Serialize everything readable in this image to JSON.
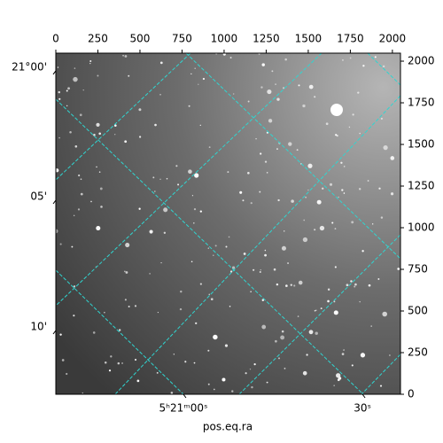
{
  "chart_data": {
    "type": "image",
    "xlabel": "pos.eq.ra",
    "xlim": [
      0,
      2048
    ],
    "ylim": [
      0,
      2048
    ],
    "xticks": [
      0,
      250,
      500,
      750,
      1000,
      1250,
      1500,
      1750,
      2000
    ],
    "yticks": [
      0,
      250,
      500,
      750,
      1000,
      1250,
      1500,
      1750,
      2000
    ],
    "ra_ticks": [
      {
        "value": 758,
        "label": "5ʰ21ᵐ00ˢ"
      },
      {
        "value": 1822,
        "label": "30ˢ"
      }
    ],
    "dec_ticks": [
      {
        "value": 1942,
        "label": "21°00'"
      },
      {
        "value": 1165,
        "label": "05'"
      },
      {
        "value": 383,
        "label": "10'"
      }
    ]
  }
}
